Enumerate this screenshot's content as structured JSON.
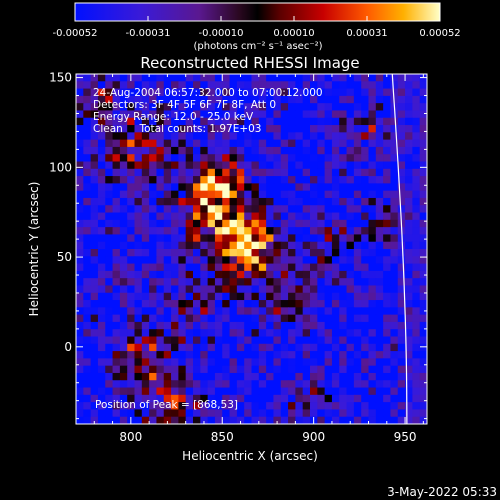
{
  "chart_data": {
    "type": "heatmap",
    "title": "Reconstructed RHESSI Image",
    "xlabel": "Heliocentric X (arcsec)",
    "ylabel": "Heliocentric Y (arcsec)",
    "xlim": [
      770,
      962
    ],
    "ylim": [
      -43,
      152
    ],
    "xticks": [
      800,
      850,
      900,
      950
    ],
    "yticks": [
      0,
      50,
      100,
      150
    ],
    "colorbar": {
      "ticks": [
        "-0.00052",
        "-0.00031",
        "-0.00010",
        "0.00010",
        "0.00031",
        "0.00052"
      ],
      "unit_label": "(photons cm⁻² s⁻¹ asec⁻²)",
      "min": -0.00052,
      "max": 0.00052
    },
    "annotations": [
      "24-Aug-2004 06:57:32.000 to 07:00:12.000",
      "Detectors: 3F 4F 5F 6F 7F 8F, Att 0",
      "Energy Range: 12.0 - 25.0 keV",
      "Clean     Total counts: 1.97E+03"
    ],
    "peak_label": "Position of Peak = [868,53]",
    "peak_position": [
      868,
      53
    ],
    "footer_date": "3-May-2022 05:33",
    "intensity_sources": [
      {
        "x": 862,
        "y": 55,
        "sigma": 13,
        "amp": 0.00052
      },
      {
        "x": 846,
        "y": 78,
        "sigma": 16,
        "amp": 0.00033
      },
      {
        "x": 848,
        "y": 95,
        "sigma": 10,
        "amp": 0.00022
      },
      {
        "x": 888,
        "y": 28,
        "sigma": 12,
        "amp": 0.0002
      },
      {
        "x": 910,
        "y": 58,
        "sigma": 10,
        "amp": 0.00014
      },
      {
        "x": 803,
        "y": 112,
        "sigma": 13,
        "amp": 0.00024
      },
      {
        "x": 808,
        "y": -5,
        "sigma": 12,
        "amp": 0.00024
      },
      {
        "x": 822,
        "y": -32,
        "sigma": 11,
        "amp": 0.00024
      },
      {
        "x": 836,
        "y": 20,
        "sigma": 11,
        "amp": 0.00014
      },
      {
        "x": 930,
        "y": 120,
        "sigma": 9,
        "amp": 0.00018
      },
      {
        "x": 940,
        "y": 70,
        "sigma": 8,
        "amp": 0.0001
      },
      {
        "x": 780,
        "y": 140,
        "sigma": 8,
        "amp": 0.0002
      },
      {
        "x": 900,
        "y": -30,
        "sigma": 9,
        "amp": 0.0001
      }
    ],
    "limb": {
      "x_at_top": 943,
      "x_at_bottom": 951
    }
  }
}
